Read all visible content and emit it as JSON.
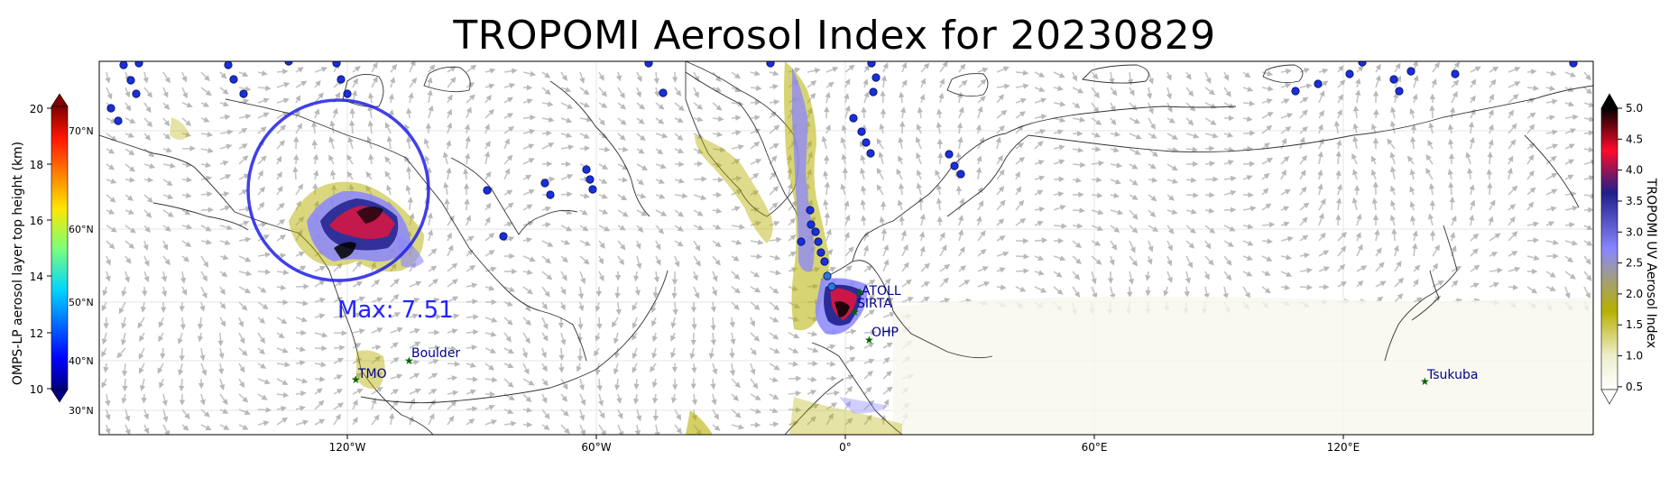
{
  "title": "TROPOMI Aerosol Index for 20230829",
  "max_label": "Max: 7.51",
  "lon_ticks": [
    "120°W",
    "60°W",
    "0°",
    "60°E",
    "120°E"
  ],
  "lat_labels": [
    "70°N",
    "60°N",
    "50°N",
    "40°N",
    "30°N"
  ],
  "left_colorbar": {
    "label": "OMPS-LP aerosol layer top height (km)",
    "ticks": [
      "20",
      "18",
      "16",
      "14",
      "12",
      "10"
    ],
    "range": [
      10,
      20
    ],
    "colormap": "jet"
  },
  "right_colorbar": {
    "label": "TROPOMI UV Aerosol Index",
    "ticks": [
      "5.0",
      "4.5",
      "4.0",
      "3.5",
      "3.0",
      "2.5",
      "2.0",
      "1.5",
      "1.0",
      "0.5"
    ],
    "range": [
      0.5,
      5.0
    ],
    "colors": [
      "#ffffff",
      "#b7b000",
      "#8a86ff",
      "#1f1f8a",
      "#ff0a2a",
      "#000000"
    ]
  },
  "stations": [
    {
      "name": "ATOLL"
    },
    {
      "name": "SIRTA"
    },
    {
      "name": "OHP"
    },
    {
      "name": "Boulder"
    },
    {
      "name": "TMO"
    },
    {
      "name": "Tsukuba"
    }
  ],
  "colors": {
    "circle": "#1f1fe8",
    "station_marker": "#006400",
    "station_text": "#00008b",
    "wind_arrows": "#b8b8b8"
  }
}
